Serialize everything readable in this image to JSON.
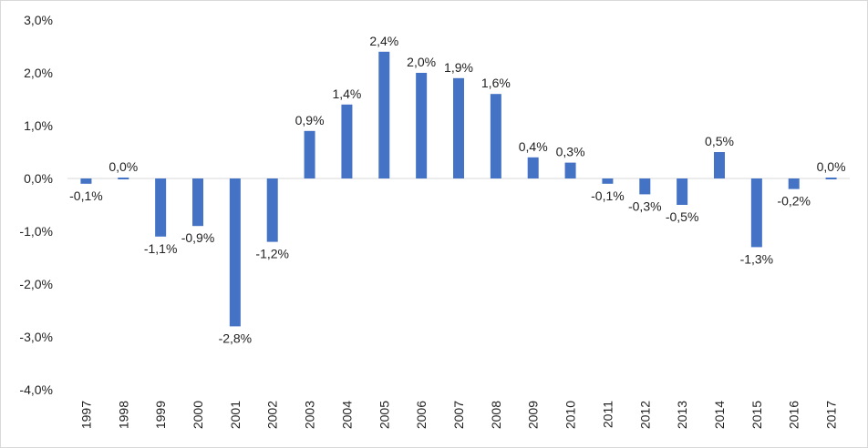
{
  "chart_data": {
    "type": "bar",
    "title": "",
    "xlabel": "",
    "ylabel": "",
    "categories": [
      "1997",
      "1998",
      "1999",
      "2000",
      "2001",
      "2002",
      "2003",
      "2004",
      "2005",
      "2006",
      "2007",
      "2008",
      "2009",
      "2010",
      "2011",
      "2012",
      "2013",
      "2014",
      "2015",
      "2016",
      "2017"
    ],
    "values": [
      -0.1,
      0.0,
      -1.1,
      -0.9,
      -2.8,
      -1.2,
      0.9,
      1.4,
      2.4,
      2.0,
      1.9,
      1.6,
      0.4,
      0.3,
      -0.1,
      -0.3,
      -0.5,
      0.5,
      -1.3,
      -0.2,
      0.0
    ],
    "data_labels": [
      "-0,1%",
      "0,0%",
      "-1,1%",
      "-0,9%",
      "-2,8%",
      "-1,2%",
      "0,9%",
      "1,4%",
      "2,4%",
      "2,0%",
      "1,9%",
      "1,6%",
      "0,4%",
      "0,3%",
      "-0,1%",
      "-0,3%",
      "-0,5%",
      "0,5%",
      "-1,3%",
      "-0,2%",
      "0,0%"
    ],
    "ylim": [
      -4.0,
      3.0
    ],
    "y_ticks": [
      3.0,
      2.0,
      1.0,
      0.0,
      -1.0,
      -2.0,
      -3.0,
      -4.0
    ],
    "y_tick_labels": [
      "3,0%",
      "2,0%",
      "1,0%",
      "0,0%",
      "-1,0%",
      "-2,0%",
      "-3,0%",
      "-4,0%"
    ],
    "grid": false,
    "legend": "none",
    "colors": {
      "bar": "#4472c4",
      "axis": "#d9d9d9",
      "text": "#222222"
    }
  }
}
